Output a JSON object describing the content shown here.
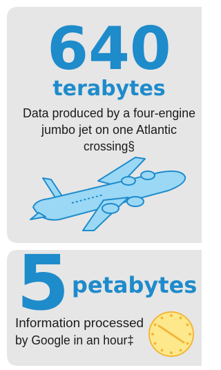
{
  "panels": [
    {
      "number": "640",
      "unit": "terabytes",
      "description_lines": [
        "Data produced by a four-engine",
        "jumbo jet on one Atlantic",
        "crossing§"
      ]
    },
    {
      "number": "5",
      "unit": "petabytes",
      "description_lines": [
        "Information processed",
        "by Google in an hour‡"
      ]
    }
  ]
}
